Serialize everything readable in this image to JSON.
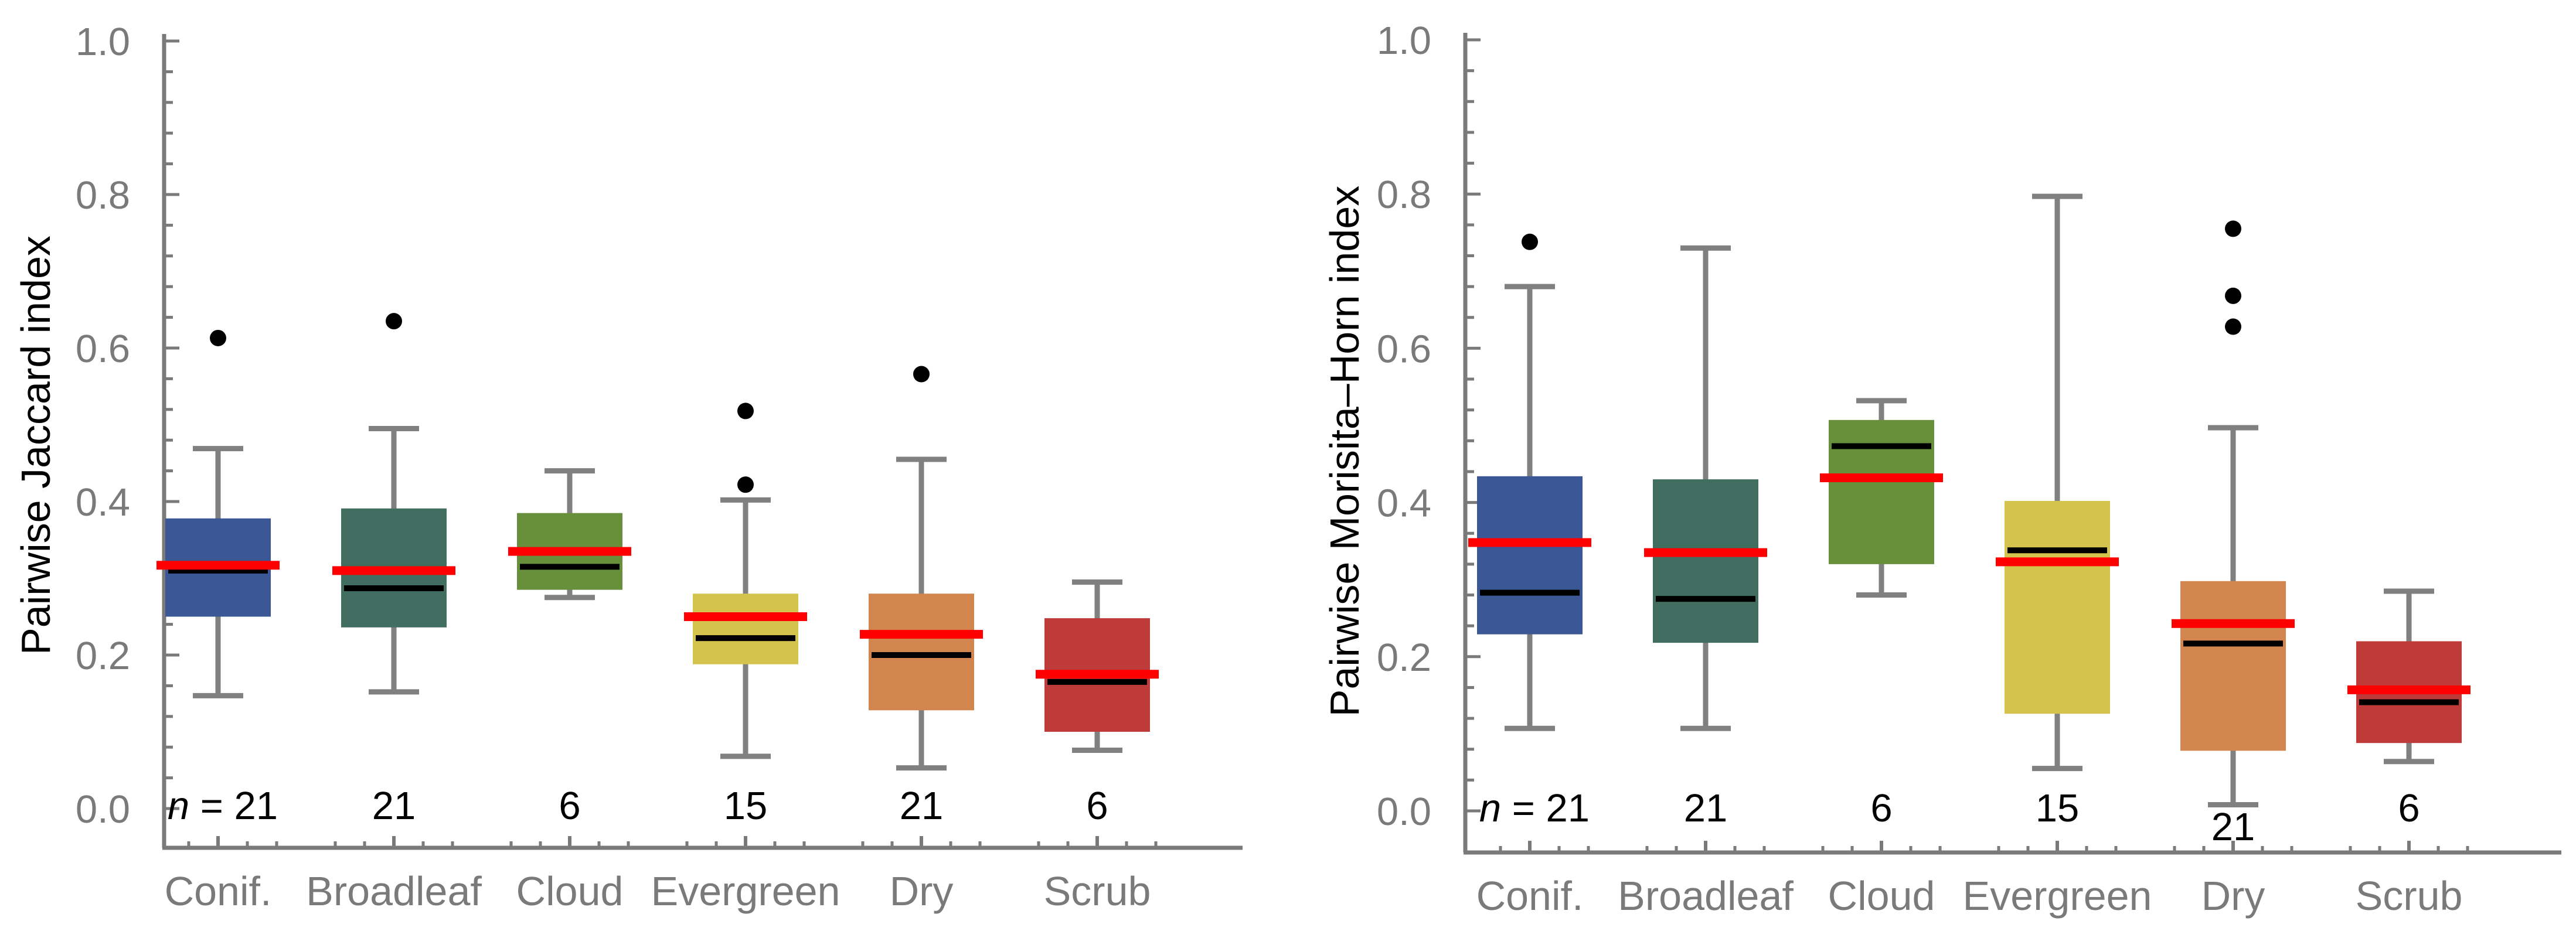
{
  "chart_data": [
    {
      "type": "box",
      "ylabel": "Pairwise Jaccard index",
      "xlabel": "",
      "ylim": [
        0.0,
        1.0
      ],
      "yticks": [
        "0.0",
        "0.2",
        "0.4",
        "0.6",
        "0.8",
        "1.0"
      ],
      "categories": [
        "Conif.",
        "Broadleaf",
        "Cloud",
        "Evergreen",
        "Dry",
        "Scrub"
      ],
      "n_prefix": "n",
      "n_labels": [
        "= 21",
        "21",
        "6",
        "15",
        "21",
        "6"
      ],
      "colors": [
        "#3b5795",
        "#426e62",
        "#688f3c",
        "#d4c44d",
        "#d2854e",
        "#be3b3a"
      ],
      "boxes": [
        {
          "whisker_low": 0.147,
          "q1": 0.25,
          "q3": 0.378,
          "whisker_high": 0.469,
          "median": 0.31,
          "mean": 0.317,
          "outliers": [
            0.613
          ]
        },
        {
          "whisker_low": 0.152,
          "q1": 0.236,
          "q3": 0.391,
          "whisker_high": 0.495,
          "median": 0.287,
          "mean": 0.31,
          "outliers": [
            0.635
          ]
        },
        {
          "whisker_low": 0.275,
          "q1": 0.285,
          "q3": 0.385,
          "whisker_high": 0.44,
          "median": 0.315,
          "mean": 0.335,
          "outliers": []
        },
        {
          "whisker_low": 0.068,
          "q1": 0.188,
          "q3": 0.28,
          "whisker_high": 0.402,
          "median": 0.222,
          "mean": 0.25,
          "outliers": [
            0.518,
            0.422
          ]
        },
        {
          "whisker_low": 0.053,
          "q1": 0.128,
          "q3": 0.28,
          "whisker_high": 0.455,
          "median": 0.2,
          "mean": 0.227,
          "outliers": [
            0.566
          ]
        },
        {
          "whisker_low": 0.076,
          "q1": 0.1,
          "q3": 0.248,
          "whisker_high": 0.295,
          "median": 0.165,
          "mean": 0.175,
          "outliers": []
        }
      ]
    },
    {
      "type": "box",
      "ylabel": "Pairwise Morisita–Horn  index",
      "xlabel": "",
      "ylim": [
        0.0,
        1.0
      ],
      "yticks": [
        "0.0",
        "0.2",
        "0.4",
        "0.6",
        "0.8",
        "1.0"
      ],
      "categories": [
        "Conif.",
        "Broadleaf",
        "Cloud",
        "Evergreen",
        "Dry",
        "Scrub"
      ],
      "n_prefix": "n",
      "n_labels": [
        "= 21",
        "21",
        "6",
        "15",
        "21",
        "6"
      ],
      "colors": [
        "#3b5795",
        "#426e62",
        "#688f3c",
        "#d4c44d",
        "#d2854e",
        "#be3b3a"
      ],
      "boxes": [
        {
          "whisker_low": 0.107,
          "q1": 0.229,
          "q3": 0.434,
          "whisker_high": 0.68,
          "median": 0.283,
          "mean": 0.348,
          "outliers": [
            0.738
          ]
        },
        {
          "whisker_low": 0.107,
          "q1": 0.218,
          "q3": 0.43,
          "whisker_high": 0.73,
          "median": 0.275,
          "mean": 0.335,
          "outliers": []
        },
        {
          "whisker_low": 0.28,
          "q1": 0.32,
          "q3": 0.507,
          "whisker_high": 0.532,
          "median": 0.473,
          "mean": 0.432,
          "outliers": []
        },
        {
          "whisker_low": 0.055,
          "q1": 0.126,
          "q3": 0.402,
          "whisker_high": 0.797,
          "median": 0.338,
          "mean": 0.323,
          "outliers": []
        },
        {
          "whisker_low": 0.008,
          "q1": 0.078,
          "q3": 0.298,
          "whisker_high": 0.497,
          "median": 0.217,
          "mean": 0.243,
          "outliers": [
            0.755,
            0.668,
            0.628
          ]
        },
        {
          "whisker_low": 0.064,
          "q1": 0.088,
          "q3": 0.22,
          "whisker_high": 0.285,
          "median": 0.141,
          "mean": 0.157,
          "outliers": []
        }
      ]
    }
  ]
}
